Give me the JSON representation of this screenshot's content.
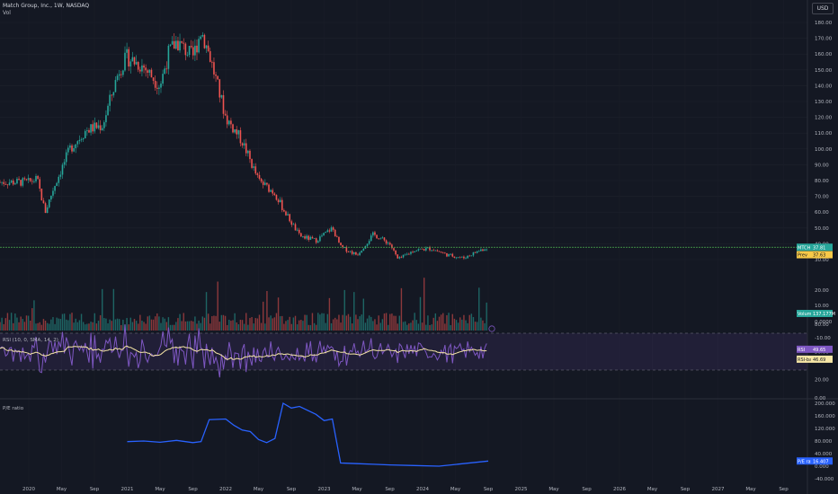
{
  "header": {
    "symbol_line": "Match Group, Inc., 1W, NASDAQ",
    "volume_label": "Vol",
    "currency": "USD"
  },
  "rsi_pane_label": "RSI (10, 0, SMA, 14, 2)",
  "pe_pane_label": "P/E ratio",
  "badges": {
    "ticker": {
      "name": "MTCH",
      "value": "37.81"
    },
    "prev": {
      "name": "Prev",
      "value": "37.63"
    },
    "volume": {
      "name": "Volume",
      "value": "137.177M"
    },
    "rsi": {
      "name": "RSI",
      "value": "49.65"
    },
    "rsi_ma": {
      "name": "RSI-based MA",
      "value": "46.69"
    },
    "pe": {
      "name": "P/E ratio",
      "value": "16.407"
    }
  },
  "colors": {
    "background": "#141823",
    "up": "#26a69a",
    "down": "#ef5350",
    "rsi_line": "#7e57c2",
    "rsi_ma": "#f7e7a6",
    "pe_line": "#2962ff",
    "price_line": "#4caf50",
    "prev_badge": "#f7c948"
  },
  "chart_data": {
    "type": "candlestick",
    "timeframe": "1W",
    "x_axis": {
      "labels": [
        "2020",
        "May",
        "Sep",
        "2021",
        "May",
        "Sep",
        "2022",
        "May",
        "Sep",
        "2023",
        "May",
        "Sep",
        "2024",
        "May",
        "Sep",
        "2025",
        "May",
        "Sep",
        "2026",
        "May",
        "Sep",
        "2027",
        "May",
        "Sep"
      ]
    },
    "price_axis": {
      "ylim": [
        30,
        180
      ],
      "ticks": [
        "180.00",
        "170.00",
        "160.00",
        "150.00",
        "140.00",
        "130.00",
        "120.00",
        "110.00",
        "100.00",
        "90.00",
        "80.00",
        "70.00",
        "60.00",
        "50.00",
        "40.00",
        "30.00"
      ]
    },
    "price_path": [
      {
        "date": "2020-01",
        "close": 79
      },
      {
        "date": "2020-02",
        "close": 81
      },
      {
        "date": "2020-03",
        "close": 60
      },
      {
        "date": "2020-04",
        "close": 75
      },
      {
        "date": "2020-06",
        "close": 100
      },
      {
        "date": "2020-08",
        "close": 112
      },
      {
        "date": "2020-10",
        "close": 115
      },
      {
        "date": "2020-12",
        "close": 150
      },
      {
        "date": "2021-01",
        "close": 158
      },
      {
        "date": "2021-03",
        "close": 152
      },
      {
        "date": "2021-05",
        "close": 140
      },
      {
        "date": "2021-06",
        "close": 160
      },
      {
        "date": "2021-07",
        "close": 168
      },
      {
        "date": "2021-09",
        "close": 158
      },
      {
        "date": "2021-10",
        "close": 175
      },
      {
        "date": "2021-11",
        "close": 160
      },
      {
        "date": "2022-01",
        "close": 120
      },
      {
        "date": "2022-03",
        "close": 105
      },
      {
        "date": "2022-05",
        "close": 80
      },
      {
        "date": "2022-07",
        "close": 72
      },
      {
        "date": "2022-08",
        "close": 62
      },
      {
        "date": "2022-10",
        "close": 45
      },
      {
        "date": "2022-12",
        "close": 42
      },
      {
        "date": "2023-02",
        "close": 50
      },
      {
        "date": "2023-03",
        "close": 38
      },
      {
        "date": "2023-05",
        "close": 33
      },
      {
        "date": "2023-07",
        "close": 46
      },
      {
        "date": "2023-09",
        "close": 40
      },
      {
        "date": "2023-10",
        "close": 30
      },
      {
        "date": "2023-12",
        "close": 36
      },
      {
        "date": "2024-02",
        "close": 37
      },
      {
        "date": "2024-04",
        "close": 33
      },
      {
        "date": "2024-06",
        "close": 31
      },
      {
        "date": "2024-08",
        "close": 36
      },
      {
        "date": "2024-09",
        "close": 37.81
      }
    ],
    "current_price": 37.81,
    "previous_close": 37.63,
    "volume_axis": {
      "ticks": [
        "20.00",
        "10.00",
        "0.0000",
        "-10.00"
      ]
    },
    "volume_last": "137.177M",
    "rsi_axis": {
      "ticks": [
        "80.00",
        "50.00",
        "20.00",
        "0.00"
      ],
      "upper_band": 70,
      "lower_band": 30
    },
    "rsi_last": 49.65,
    "rsi_ma_last": 46.69,
    "pe_axis": {
      "ticks": [
        "200.000",
        "160.000",
        "120.000",
        "80.000",
        "40.000",
        "0.000",
        "-40.000"
      ]
    },
    "pe_ratio": [
      {
        "date": "2021-01",
        "value": 78
      },
      {
        "date": "2021-03",
        "value": 80
      },
      {
        "date": "2021-05",
        "value": 76
      },
      {
        "date": "2021-07",
        "value": 82
      },
      {
        "date": "2021-09",
        "value": 75
      },
      {
        "date": "2021-10",
        "value": 78
      },
      {
        "date": "2021-11",
        "value": 148
      },
      {
        "date": "2022-01",
        "value": 150
      },
      {
        "date": "2022-02",
        "value": 130
      },
      {
        "date": "2022-03",
        "value": 115
      },
      {
        "date": "2022-04",
        "value": 110
      },
      {
        "date": "2022-05",
        "value": 85
      },
      {
        "date": "2022-06",
        "value": 75
      },
      {
        "date": "2022-07",
        "value": 88
      },
      {
        "date": "2022-08",
        "value": 200
      },
      {
        "date": "2022-09",
        "value": 185
      },
      {
        "date": "2022-10",
        "value": 190
      },
      {
        "date": "2022-12",
        "value": 165
      },
      {
        "date": "2023-01",
        "value": 145
      },
      {
        "date": "2023-02",
        "value": 150
      },
      {
        "date": "2023-03",
        "value": 10
      },
      {
        "date": "2023-05",
        "value": 8
      },
      {
        "date": "2023-07",
        "value": 6
      },
      {
        "date": "2023-09",
        "value": 4
      },
      {
        "date": "2023-12",
        "value": 2
      },
      {
        "date": "2024-03",
        "value": 0
      },
      {
        "date": "2024-09",
        "value": 16.407
      }
    ]
  }
}
